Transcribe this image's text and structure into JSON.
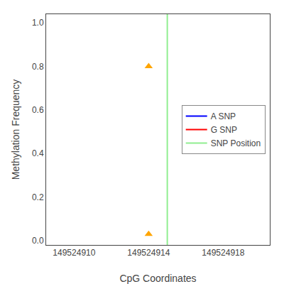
{
  "chart_data": {
    "type": "scatter",
    "xlabel": "CpG Coordinates",
    "ylabel": "Methylation Frequency",
    "series": [
      {
        "type": "scatter",
        "color": "#FFA500",
        "marker": "triangle-up",
        "x": [
          149524914,
          149524914
        ],
        "values": [
          0.8,
          0.03
        ]
      },
      {
        "name": "A SNP",
        "type": "line",
        "color": "blue",
        "x": [],
        "values": []
      },
      {
        "name": "G SNP",
        "type": "line",
        "color": "red",
        "x": [],
        "values": []
      },
      {
        "name": "SNP Position",
        "type": "vline",
        "color": "#90EE90",
        "x": [
          149524915
        ]
      }
    ],
    "xlim": [
      149524908.5,
      149524920.5
    ],
    "ylim": [
      -0.02,
      1.04
    ],
    "xticks": [
      149524910,
      149524914,
      149524918
    ],
    "yticks": [
      {
        "value": 0,
        "label": "0.0"
      },
      0.2,
      0.4,
      0.6,
      0.8,
      {
        "value": 1,
        "label": "1.0"
      }
    ],
    "grid": false,
    "legend": "right"
  }
}
